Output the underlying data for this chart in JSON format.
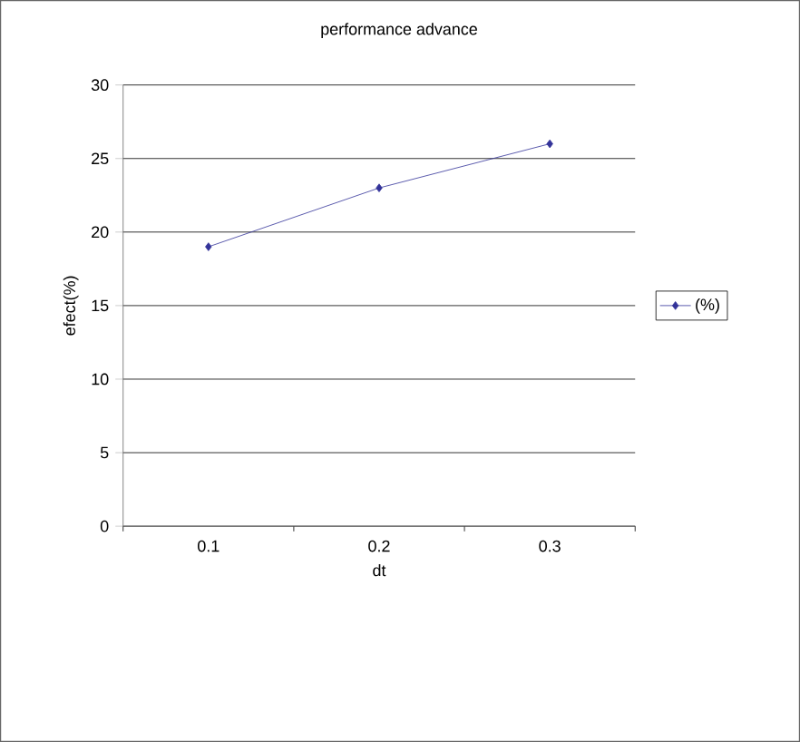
{
  "chart_data": {
    "type": "line",
    "title": "performance advance",
    "xlabel": "dt",
    "ylabel": "efect(%)",
    "categories": [
      "0.1",
      "0.2",
      "0.3"
    ],
    "series": [
      {
        "name": "(%)",
        "color": "#333399",
        "values": [
          19,
          23,
          26
        ]
      }
    ],
    "ylim": [
      0,
      30
    ],
    "yticks": [
      0,
      5,
      10,
      15,
      20,
      25,
      30
    ],
    "grid": "y",
    "legend": "right",
    "marker": "diamond",
    "line_style": "solid"
  }
}
